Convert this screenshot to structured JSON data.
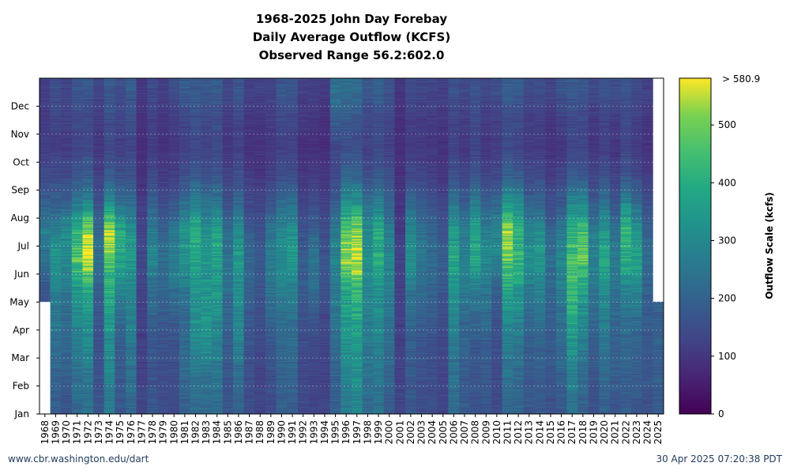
{
  "chart_data": {
    "type": "heatmap",
    "title_lines": [
      "1968-2025 John Day Forebay",
      "Daily Average Outflow (KCFS)",
      "Observed Range 56.2:602.0"
    ],
    "x_categories": [
      "1968",
      "1969",
      "1970",
      "1971",
      "1972",
      "1973",
      "1974",
      "1975",
      "1976",
      "1977",
      "1978",
      "1979",
      "1980",
      "1981",
      "1982",
      "1983",
      "1984",
      "1985",
      "1986",
      "1987",
      "1988",
      "1989",
      "1990",
      "1991",
      "1992",
      "1993",
      "1994",
      "1995",
      "1996",
      "1997",
      "1998",
      "1999",
      "2000",
      "2001",
      "2002",
      "2003",
      "2004",
      "2005",
      "2006",
      "2007",
      "2008",
      "2009",
      "2010",
      "2011",
      "2012",
      "2013",
      "2014",
      "2015",
      "2016",
      "2017",
      "2018",
      "2019",
      "2020",
      "2021",
      "2022",
      "2023",
      "2024",
      "2025"
    ],
    "y_categories": [
      "Jan",
      "Feb",
      "Mar",
      "Apr",
      "May",
      "Jun",
      "Jul",
      "Aug",
      "Sep",
      "Oct",
      "Nov",
      "Dec"
    ],
    "grid": true,
    "colorbar": {
      "label": "Outflow Scale (kcfs)",
      "range": [
        0,
        580.9
      ],
      "ticks": [
        0,
        100,
        200,
        300,
        400,
        500
      ],
      "max_label": "> 580.9",
      "colormap": "viridis"
    },
    "monthly_outflow": [
      {
        "year": "1968",
        "values": [
          null,
          null,
          null,
          null,
          170,
          240,
          260,
          200,
          150,
          110,
          110,
          120
        ]
      },
      {
        "year": "1969",
        "values": [
          190,
          200,
          240,
          250,
          290,
          340,
          280,
          200,
          140,
          120,
          130,
          150
        ]
      },
      {
        "year": "1970",
        "values": [
          170,
          190,
          210,
          220,
          260,
          300,
          310,
          200,
          140,
          110,
          120,
          130
        ]
      },
      {
        "year": "1971",
        "values": [
          220,
          240,
          260,
          300,
          360,
          460,
          420,
          260,
          170,
          130,
          140,
          170
        ]
      },
      {
        "year": "1972",
        "values": [
          240,
          260,
          300,
          330,
          400,
          580,
          540,
          300,
          180,
          140,
          140,
          170
        ]
      },
      {
        "year": "1973",
        "values": [
          170,
          160,
          160,
          170,
          190,
          230,
          220,
          160,
          120,
          100,
          110,
          130
        ]
      },
      {
        "year": "1974",
        "values": [
          260,
          290,
          310,
          350,
          400,
          460,
          560,
          320,
          180,
          140,
          150,
          180
        ]
      },
      {
        "year": "1975",
        "values": [
          170,
          180,
          190,
          220,
          290,
          380,
          380,
          240,
          150,
          120,
          130,
          150
        ]
      },
      {
        "year": "1976",
        "values": [
          220,
          240,
          250,
          270,
          300,
          340,
          320,
          230,
          160,
          130,
          150,
          180
        ]
      },
      {
        "year": "1977",
        "values": [
          130,
          120,
          120,
          120,
          130,
          140,
          130,
          110,
          90,
          80,
          90,
          100
        ]
      },
      {
        "year": "1978",
        "values": [
          170,
          160,
          170,
          200,
          240,
          300,
          260,
          190,
          140,
          110,
          120,
          140
        ]
      },
      {
        "year": "1979",
        "values": [
          150,
          150,
          160,
          180,
          210,
          230,
          200,
          150,
          110,
          90,
          100,
          120
        ]
      },
      {
        "year": "1980",
        "values": [
          140,
          150,
          160,
          190,
          240,
          280,
          250,
          170,
          120,
          100,
          110,
          150
        ]
      },
      {
        "year": "1981",
        "values": [
          200,
          220,
          210,
          220,
          260,
          330,
          330,
          230,
          150,
          120,
          130,
          180
        ]
      },
      {
        "year": "1982",
        "values": [
          230,
          260,
          300,
          320,
          330,
          380,
          400,
          290,
          180,
          140,
          150,
          180
        ]
      },
      {
        "year": "1983",
        "values": [
          220,
          240,
          330,
          340,
          330,
          330,
          320,
          230,
          160,
          130,
          140,
          170
        ]
      },
      {
        "year": "1984",
        "values": [
          220,
          250,
          290,
          320,
          340,
          360,
          380,
          250,
          170,
          140,
          150,
          180
        ]
      },
      {
        "year": "1985",
        "values": [
          170,
          170,
          180,
          210,
          230,
          250,
          220,
          160,
          120,
          100,
          110,
          130
        ]
      },
      {
        "year": "1986",
        "values": [
          200,
          230,
          280,
          290,
          310,
          350,
          310,
          220,
          150,
          120,
          130,
          170
        ]
      },
      {
        "year": "1987",
        "values": [
          150,
          150,
          160,
          180,
          200,
          210,
          180,
          140,
          110,
          90,
          100,
          120
        ]
      },
      {
        "year": "1988",
        "values": [
          130,
          130,
          140,
          150,
          170,
          180,
          160,
          130,
          100,
          90,
          100,
          120
        ]
      },
      {
        "year": "1989",
        "values": [
          150,
          160,
          170,
          200,
          240,
          270,
          240,
          170,
          120,
          100,
          110,
          130
        ]
      },
      {
        "year": "1990",
        "values": [
          190,
          200,
          210,
          230,
          280,
          300,
          300,
          220,
          150,
          120,
          140,
          170
        ]
      },
      {
        "year": "1991",
        "values": [
          190,
          210,
          220,
          240,
          280,
          340,
          330,
          230,
          150,
          120,
          140,
          170
        ]
      },
      {
        "year": "1992",
        "values": [
          140,
          140,
          150,
          160,
          180,
          190,
          160,
          130,
          100,
          90,
          100,
          120
        ]
      },
      {
        "year": "1993",
        "values": [
          130,
          130,
          140,
          170,
          230,
          250,
          200,
          150,
          110,
          90,
          100,
          120
        ]
      },
      {
        "year": "1994",
        "values": [
          130,
          120,
          130,
          140,
          160,
          170,
          150,
          120,
          100,
          80,
          90,
          110
        ]
      },
      {
        "year": "1995",
        "values": [
          190,
          200,
          220,
          240,
          260,
          280,
          260,
          190,
          140,
          130,
          180,
          240
        ]
      },
      {
        "year": "1996",
        "values": [
          270,
          300,
          320,
          350,
          390,
          500,
          480,
          320,
          200,
          150,
          180,
          230
        ]
      },
      {
        "year": "1997",
        "values": [
          290,
          320,
          340,
          380,
          450,
          560,
          540,
          340,
          200,
          150,
          170,
          220
        ]
      },
      {
        "year": "1998",
        "values": [
          220,
          240,
          260,
          280,
          300,
          320,
          300,
          230,
          150,
          120,
          140,
          170
        ]
      },
      {
        "year": "1999",
        "values": [
          240,
          260,
          280,
          300,
          330,
          390,
          390,
          280,
          180,
          140,
          150,
          190
        ]
      },
      {
        "year": "2000",
        "values": [
          190,
          210,
          220,
          240,
          270,
          290,
          270,
          200,
          150,
          120,
          130,
          160
        ]
      },
      {
        "year": "2001",
        "values": [
          130,
          120,
          120,
          120,
          120,
          130,
          110,
          100,
          90,
          80,
          90,
          100
        ]
      },
      {
        "year": "2002",
        "values": [
          170,
          180,
          190,
          210,
          260,
          320,
          300,
          220,
          140,
          110,
          120,
          140
        ]
      },
      {
        "year": "2003",
        "values": [
          150,
          160,
          170,
          190,
          220,
          260,
          240,
          180,
          130,
          100,
          110,
          130
        ]
      },
      {
        "year": "2004",
        "values": [
          150,
          150,
          160,
          180,
          200,
          230,
          210,
          160,
          120,
          100,
          110,
          130
        ]
      },
      {
        "year": "2005",
        "values": [
          130,
          130,
          140,
          150,
          170,
          190,
          170,
          130,
          100,
          90,
          100,
          120
        ]
      },
      {
        "year": "2006",
        "values": [
          220,
          240,
          260,
          290,
          330,
          370,
          350,
          250,
          160,
          120,
          130,
          160
        ]
      },
      {
        "year": "2007",
        "values": [
          180,
          190,
          200,
          220,
          260,
          290,
          270,
          190,
          130,
          100,
          110,
          140
        ]
      },
      {
        "year": "2008",
        "values": [
          160,
          170,
          180,
          210,
          280,
          380,
          380,
          270,
          170,
          130,
          140,
          160
        ]
      },
      {
        "year": "2009",
        "values": [
          170,
          180,
          190,
          220,
          260,
          300,
          280,
          190,
          130,
          100,
          110,
          140
        ]
      },
      {
        "year": "2010",
        "values": [
          140,
          140,
          150,
          160,
          200,
          280,
          300,
          220,
          140,
          110,
          120,
          150
        ]
      },
      {
        "year": "2011",
        "values": [
          210,
          240,
          270,
          310,
          380,
          480,
          520,
          340,
          200,
          140,
          150,
          180
        ]
      },
      {
        "year": "2012",
        "values": [
          200,
          220,
          250,
          300,
          350,
          410,
          430,
          310,
          180,
          130,
          140,
          180
        ]
      },
      {
        "year": "2013",
        "values": [
          170,
          180,
          190,
          220,
          270,
          320,
          290,
          200,
          140,
          110,
          120,
          140
        ]
      },
      {
        "year": "2014",
        "values": [
          180,
          190,
          200,
          230,
          280,
          330,
          310,
          210,
          140,
          110,
          120,
          150
        ]
      },
      {
        "year": "2015",
        "values": [
          160,
          170,
          180,
          190,
          210,
          230,
          200,
          150,
          110,
          90,
          100,
          130
        ]
      },
      {
        "year": "2016",
        "values": [
          180,
          200,
          220,
          240,
          270,
          290,
          260,
          180,
          130,
          100,
          120,
          160
        ]
      },
      {
        "year": "2017",
        "values": [
          240,
          290,
          340,
          380,
          430,
          450,
          420,
          300,
          180,
          130,
          140,
          180
        ]
      },
      {
        "year": "2018",
        "values": [
          200,
          230,
          270,
          310,
          380,
          470,
          440,
          300,
          170,
          130,
          140,
          170
        ]
      },
      {
        "year": "2019",
        "values": [
          160,
          170,
          190,
          210,
          250,
          290,
          260,
          180,
          130,
          100,
          110,
          140
        ]
      },
      {
        "year": "2020",
        "values": [
          200,
          220,
          250,
          280,
          320,
          370,
          350,
          240,
          160,
          120,
          130,
          160
        ]
      },
      {
        "year": "2021",
        "values": [
          170,
          190,
          200,
          210,
          240,
          270,
          240,
          170,
          120,
          100,
          110,
          150
        ]
      },
      {
        "year": "2022",
        "values": [
          190,
          200,
          210,
          230,
          290,
          400,
          420,
          300,
          170,
          130,
          140,
          160
        ]
      },
      {
        "year": "2023",
        "values": [
          170,
          190,
          200,
          230,
          300,
          380,
          330,
          220,
          140,
          110,
          120,
          140
        ]
      },
      {
        "year": "2024",
        "values": [
          160,
          170,
          170,
          180,
          200,
          230,
          200,
          150,
          110,
          90,
          100,
          120
        ]
      },
      {
        "year": "2025",
        "values": [
          180,
          190,
          190,
          200,
          null,
          null,
          null,
          null,
          null,
          null,
          null,
          null
        ]
      }
    ]
  },
  "footer": {
    "source": "www.cbr.washington.edu/dart",
    "timestamp": "30 Apr 2025 07:20:38 PDT"
  }
}
